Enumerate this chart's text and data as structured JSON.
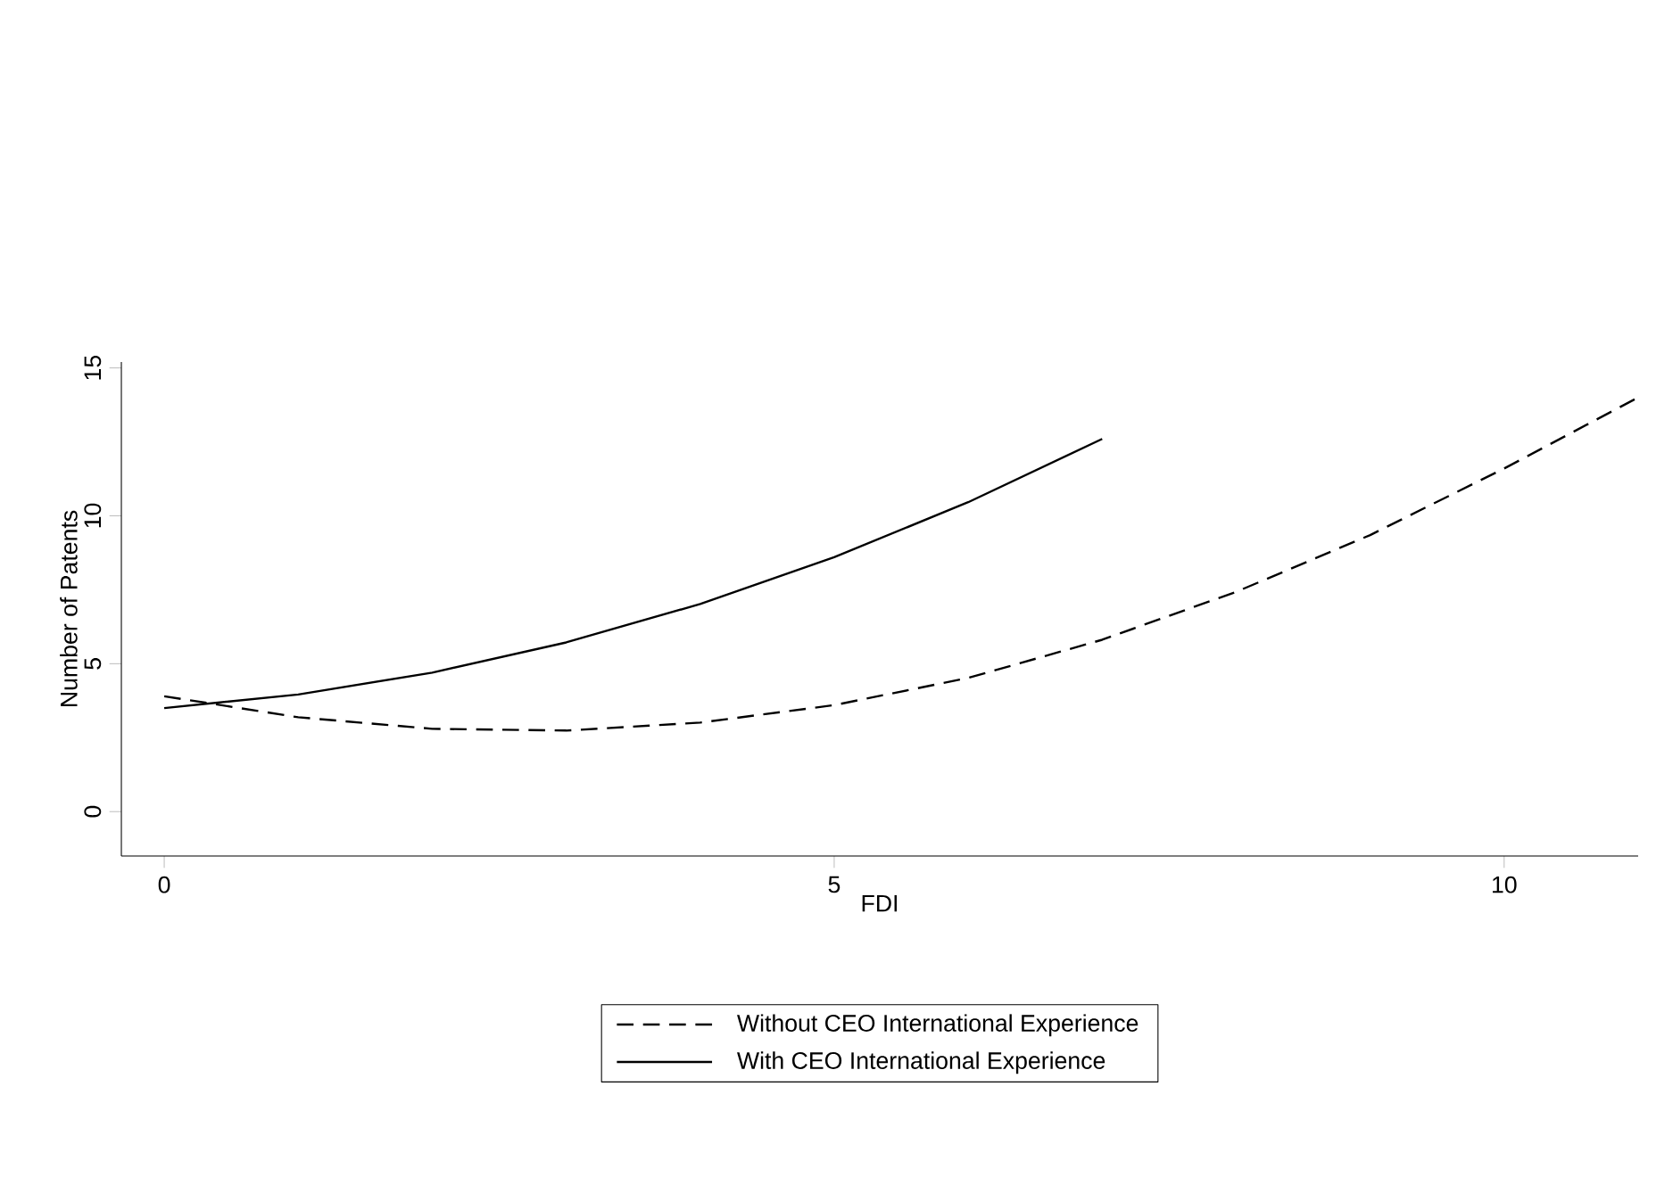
{
  "chart_data": {
    "type": "line",
    "xlabel": "FDI",
    "ylabel": "Number of Patents",
    "xlim": [
      -0.32,
      11
    ],
    "ylim": [
      -1.5,
      15.2
    ],
    "xticks": [
      0,
      5,
      10
    ],
    "yticks": [
      0,
      5,
      10,
      15
    ],
    "grid": false,
    "legend": "bottom",
    "marker": "none",
    "series": [
      {
        "name": "Without CEO International Experience",
        "color": "#000000",
        "line_style": "dashed",
        "x": [
          0,
          1,
          2,
          3,
          4,
          5,
          6,
          7,
          8,
          9,
          10,
          11
        ],
        "values": [
          3.9,
          3.19,
          2.8,
          2.74,
          3.01,
          3.6,
          4.52,
          5.81,
          7.43,
          9.35,
          11.6,
          14.0
        ]
      },
      {
        "name": "With CEO International Experience",
        "color": "#000000",
        "line_style": "solid",
        "x": [
          0,
          1,
          2,
          3,
          4,
          5,
          6,
          7
        ],
        "values": [
          3.5,
          3.96,
          4.7,
          5.72,
          7.02,
          8.6,
          10.46,
          12.6
        ]
      }
    ]
  }
}
